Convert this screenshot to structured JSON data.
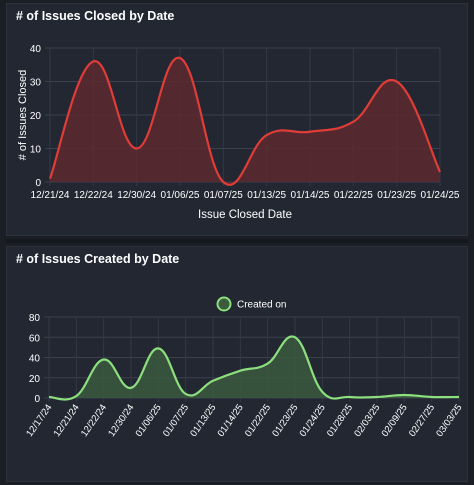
{
  "panels": [
    {
      "title": "# of Issues Closed by Date",
      "colors": {
        "line": "#e03c38",
        "fill": "#5c2a2f"
      },
      "chart_data": {
        "type": "area",
        "title": "",
        "xlabel": "Issue Closed Date",
        "ylabel": "# of Issues Closed",
        "ylim": [
          0,
          40
        ],
        "yticks": [
          0,
          10,
          20,
          30,
          40
        ],
        "grid": true,
        "legend": null,
        "categories": [
          "12/21/24",
          "12/22/24",
          "12/30/24",
          "01/06/25",
          "01/07/25",
          "01/13/25",
          "01/14/25",
          "01/22/25",
          "01/23/25",
          "01/24/25"
        ],
        "series": [
          {
            "values": [
              1,
              36,
              10,
              37,
              0,
              14,
              15,
              18,
              30,
              3
            ]
          }
        ]
      }
    },
    {
      "title": "# of Issues Created by Date",
      "colors": {
        "line": "#8ddf7e",
        "fill": "#3b5a3e"
      },
      "chart_data": {
        "type": "area",
        "title": "",
        "xlabel": "",
        "ylabel": "",
        "ylim": [
          0,
          80
        ],
        "yticks": [
          0,
          20,
          40,
          60,
          80
        ],
        "grid": true,
        "legend": "top-center",
        "categories": [
          "12/17/24",
          "12/21/24",
          "12/22/24",
          "12/30/24",
          "01/06/25",
          "01/07/25",
          "01/13/25",
          "01/14/25",
          "01/22/25",
          "01/23/25",
          "01/24/25",
          "01/28/25",
          "02/03/25",
          "02/09/25",
          "02/27/25",
          "03/03/25"
        ],
        "series": [
          {
            "name": "Created on",
            "values": [
              1,
              2,
              38,
              10,
              49,
              4,
              17,
              27,
              34,
              60,
              6,
              1,
              1,
              3,
              1,
              1
            ]
          }
        ]
      }
    }
  ]
}
